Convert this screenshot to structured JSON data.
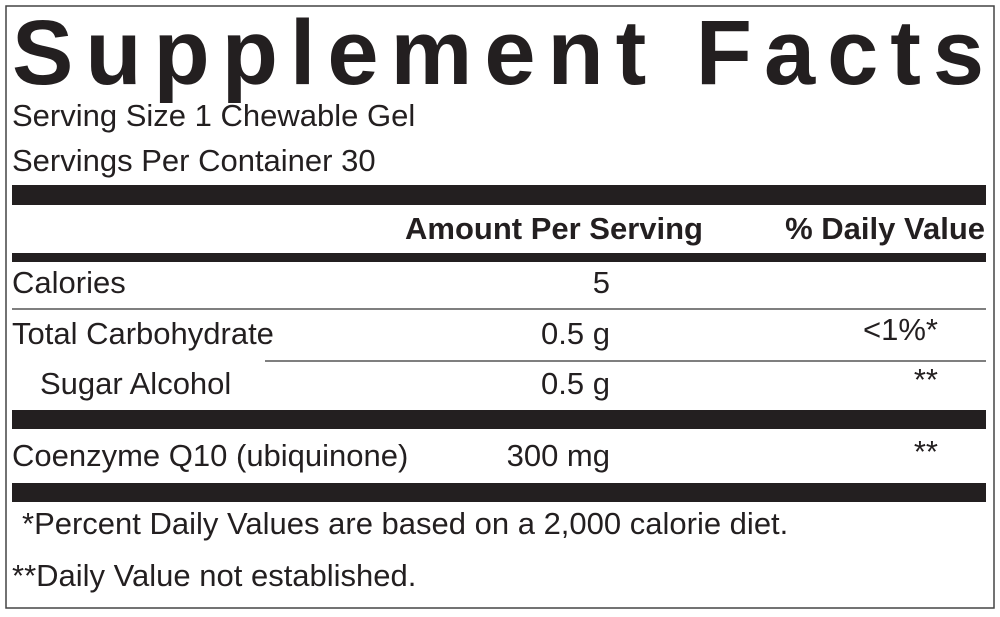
{
  "title": "Supplement Facts",
  "serving_size": "Serving Size 1 Chewable Gel",
  "servings_per_container": "Servings Per Container 30",
  "table": {
    "headers": [
      "Amount Per Serving",
      "% Daily Value"
    ],
    "rows": [
      {
        "name": "Calories",
        "amount": "5"
      },
      {
        "name": "Total Carbohydrate",
        "amount": "0.5 g",
        "daily_value": "<1%*"
      },
      {
        "name": "Sugar Alcohol",
        "amount": "0.5 g",
        "daily_value": "**"
      },
      {
        "name": "Coenzyme Q10 (ubiquinone)",
        "amount": "300 mg",
        "daily_value": "**"
      }
    ]
  },
  "footnotes": [
    "*Percent Daily Values are based on a 2,000 calorie diet.",
    "**Daily Value not established."
  ]
}
